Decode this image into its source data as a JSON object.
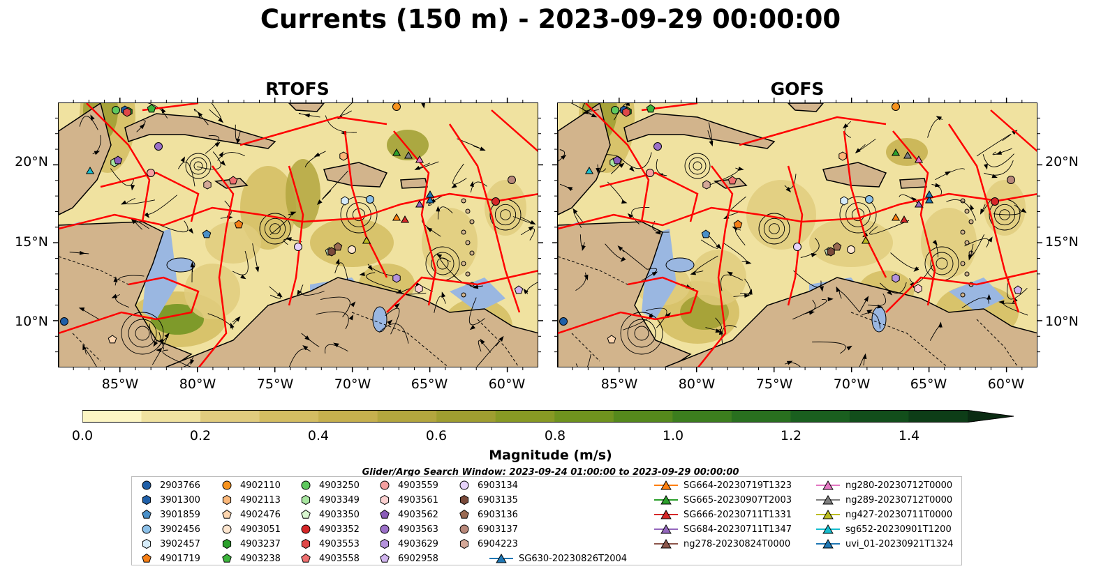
{
  "title": "Currents (150 m) - 2023-09-29 00:00:00",
  "panels": [
    {
      "title": "RTOFS"
    },
    {
      "title": "GOFS"
    }
  ],
  "axes": {
    "lon_labels": [
      "85°W",
      "80°W",
      "75°W",
      "70°W",
      "65°W",
      "60°W"
    ],
    "lon_values": [
      -85,
      -80,
      -75,
      -70,
      -65,
      -60
    ],
    "lat_labels": [
      "20°N",
      "15°N",
      "10°N"
    ],
    "lat_values": [
      20,
      15,
      10
    ],
    "lon_range": [
      -89,
      -58
    ],
    "lat_range": [
      7,
      24
    ]
  },
  "colorbar": {
    "label": "Magnitude (m/s)",
    "ticks": [
      "0.0",
      "0.2",
      "0.4",
      "0.6",
      "0.8",
      "1.0",
      "1.2",
      "1.4"
    ],
    "range": [
      0,
      1.5
    ],
    "extend": "max",
    "colors": [
      "#fdf6c3",
      "#f0e2a0",
      "#e1cc7e",
      "#d4bd62",
      "#c6b04e",
      "#b3a63e",
      "#9f9e30",
      "#889a24",
      "#6f931e",
      "#55891c",
      "#3c7e1e",
      "#29701f",
      "#1a5f1f",
      "#124e1b",
      "#0d3d17",
      "#0a2b12"
    ]
  },
  "search_window": "Glider/Argo Search Window: 2023-09-24 01:00:00 to 2023-09-29 00:00:00",
  "legend": {
    "argo": [
      {
        "id": "2903766",
        "marker": "circle",
        "color": "#1f5fa8"
      },
      {
        "id": "3901300",
        "marker": "hexagon",
        "color": "#1f5fa8"
      },
      {
        "id": "3901859",
        "marker": "pentagon",
        "color": "#4a90c8"
      },
      {
        "id": "3902456",
        "marker": "circle",
        "color": "#8cc0e8"
      },
      {
        "id": "3902457",
        "marker": "hexagon",
        "color": "#d6ecfa"
      },
      {
        "id": "4901719",
        "marker": "pentagon",
        "color": "#f57e14"
      },
      {
        "id": "4902110",
        "marker": "circle",
        "color": "#f7931e"
      },
      {
        "id": "4902113",
        "marker": "hexagon",
        "color": "#fbb87a"
      },
      {
        "id": "4902476",
        "marker": "pentagon",
        "color": "#fdd6b0"
      },
      {
        "id": "4903051",
        "marker": "circle",
        "color": "#fde6cf"
      },
      {
        "id": "4903237",
        "marker": "hexagon",
        "color": "#2ca02c"
      },
      {
        "id": "4903238",
        "marker": "pentagon",
        "color": "#3cb43c"
      },
      {
        "id": "4903250",
        "marker": "circle",
        "color": "#5ec85e"
      },
      {
        "id": "4903349",
        "marker": "hexagon",
        "color": "#a8e6a0"
      },
      {
        "id": "4903350",
        "marker": "pentagon",
        "color": "#d9f7d0"
      },
      {
        "id": "4903352",
        "marker": "circle",
        "color": "#d62728"
      },
      {
        "id": "4903553",
        "marker": "hexagon",
        "color": "#e04848"
      },
      {
        "id": "4903558",
        "marker": "pentagon",
        "color": "#ef7070"
      },
      {
        "id": "4903559",
        "marker": "circle",
        "color": "#f4a0a0"
      },
      {
        "id": "4903561",
        "marker": "hexagon",
        "color": "#fbd0d0"
      },
      {
        "id": "4903562",
        "marker": "pentagon",
        "color": "#8a5cb8"
      },
      {
        "id": "4903563",
        "marker": "circle",
        "color": "#9b70c8"
      },
      {
        "id": "4903629",
        "marker": "hexagon",
        "color": "#b492dc"
      },
      {
        "id": "6902958",
        "marker": "pentagon",
        "color": "#d0b4ee"
      },
      {
        "id": "6903134",
        "marker": "circle",
        "color": "#e6d2fa"
      },
      {
        "id": "6903135",
        "marker": "hexagon",
        "color": "#7a4a3a"
      },
      {
        "id": "6903136",
        "marker": "pentagon",
        "color": "#9a6a52"
      },
      {
        "id": "6903137",
        "marker": "circle",
        "color": "#b8887a"
      },
      {
        "id": "6904223",
        "marker": "hexagon",
        "color": "#d4a898"
      }
    ],
    "gliders": [
      {
        "id": "SG630-20230826T2004",
        "color": "#1f77b4"
      },
      {
        "id": "SG664-20230719T1323",
        "color": "#ff7f0e"
      },
      {
        "id": "SG665-20230907T2003",
        "color": "#2ca02c"
      },
      {
        "id": "SG666-20230711T1331",
        "color": "#d62728"
      },
      {
        "id": "SG684-20230711T1347",
        "color": "#9467bd"
      },
      {
        "id": "ng278-20230824T0000",
        "color": "#8c564b"
      },
      {
        "id": "ng280-20230712T0000",
        "color": "#e377c2"
      },
      {
        "id": "ng289-20230712T0000",
        "color": "#7f7f7f"
      },
      {
        "id": "ng427-20230711T0000",
        "color": "#bcbd22"
      },
      {
        "id": "sg652-20230901T1200",
        "color": "#17becf"
      },
      {
        "id": "uvi_01-20230921T1324",
        "color": "#1f77b4"
      }
    ]
  },
  "map_colors": {
    "land": "#d2b48c",
    "shallow": "#9ab7e1",
    "eez": "#ff0000",
    "streamline": "#000000"
  }
}
